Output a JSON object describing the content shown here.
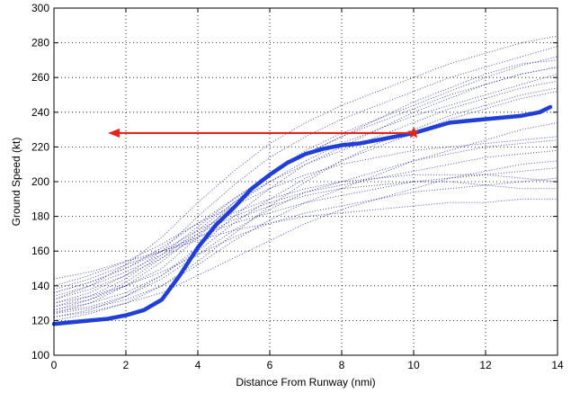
{
  "chart_data": {
    "type": "line",
    "title": "",
    "xlabel": "Distance From Runway (nmi)",
    "ylabel": "Ground Speed (kt)",
    "xlim": [
      0,
      14
    ],
    "ylim": [
      100,
      300
    ],
    "xticks": [
      0,
      2,
      4,
      6,
      8,
      10,
      12,
      14
    ],
    "yticks": [
      100,
      120,
      140,
      160,
      180,
      200,
      220,
      240,
      260,
      280,
      300
    ],
    "grid": true,
    "legend": "none",
    "colors": {
      "background_tracks": "#1a1aa8",
      "highlight_track": "#1f3fd6",
      "arrow": "#e3261b",
      "grid": "#000000"
    },
    "background_tracks": [
      {
        "x": [
          0,
          1,
          2,
          3,
          4,
          5,
          6,
          7,
          8,
          9,
          10,
          11,
          12,
          13,
          14
        ],
        "y": [
          128,
          132,
          140,
          150,
          168,
          188,
          205,
          218,
          228,
          236,
          244,
          252,
          260,
          267,
          272
        ]
      },
      {
        "x": [
          0,
          1,
          2,
          3,
          4,
          5,
          6,
          7,
          8,
          9,
          10,
          11,
          12,
          13,
          14
        ],
        "y": [
          130,
          136,
          146,
          160,
          180,
          198,
          214,
          226,
          236,
          244,
          252,
          260,
          266,
          272,
          278
        ]
      },
      {
        "x": [
          0,
          1,
          2,
          3,
          4,
          5,
          6,
          7,
          8,
          9,
          10,
          11,
          12,
          13,
          14
        ],
        "y": [
          126,
          130,
          136,
          146,
          160,
          176,
          190,
          202,
          212,
          220,
          228,
          236,
          242,
          248,
          252
        ]
      },
      {
        "x": [
          0,
          1,
          2,
          3,
          4,
          5,
          6,
          7,
          8,
          9,
          10,
          11,
          12,
          13,
          14
        ],
        "y": [
          124,
          127,
          132,
          140,
          152,
          166,
          178,
          188,
          196,
          204,
          212,
          218,
          224,
          230,
          234
        ]
      },
      {
        "x": [
          0,
          1,
          2,
          3,
          4,
          5,
          6,
          7,
          8,
          9,
          10,
          11,
          12,
          13,
          14
        ],
        "y": [
          132,
          140,
          152,
          168,
          188,
          206,
          222,
          234,
          244,
          252,
          260,
          268,
          274,
          280,
          284
        ]
      },
      {
        "x": [
          0,
          1,
          2,
          3,
          4,
          5,
          6,
          7,
          8,
          9,
          10,
          11,
          12,
          13,
          14
        ],
        "y": [
          122,
          125,
          130,
          136,
          146,
          156,
          166,
          176,
          184,
          190,
          196,
          202,
          206,
          210,
          212
        ]
      },
      {
        "x": [
          0,
          1,
          2,
          3,
          4,
          5,
          6,
          7,
          8,
          9,
          10,
          11,
          12,
          13,
          14
        ],
        "y": [
          136,
          142,
          150,
          162,
          176,
          190,
          204,
          216,
          226,
          234,
          242,
          250,
          256,
          262,
          266
        ]
      },
      {
        "x": [
          0,
          1,
          2,
          3,
          4,
          5,
          6,
          7,
          8,
          9,
          10,
          11,
          12,
          13,
          14
        ],
        "y": [
          125,
          128,
          134,
          144,
          158,
          172,
          184,
          194,
          200,
          206,
          212,
          216,
          220,
          222,
          224
        ]
      },
      {
        "x": [
          0,
          1,
          2,
          3,
          4,
          5,
          6,
          7,
          8,
          9,
          10,
          11,
          12,
          13,
          14
        ],
        "y": [
          140,
          146,
          154,
          164,
          176,
          186,
          196,
          204,
          210,
          214,
          218,
          220,
          222,
          224,
          226
        ]
      },
      {
        "x": [
          0,
          1,
          2,
          3,
          4,
          5,
          6,
          7,
          8,
          9,
          10,
          11,
          12,
          13,
          14
        ],
        "y": [
          128,
          134,
          144,
          158,
          174,
          190,
          204,
          216,
          226,
          236,
          246,
          254,
          262,
          268,
          270
        ]
      },
      {
        "x": [
          0,
          1,
          2,
          3,
          4,
          5,
          6,
          7,
          8,
          9,
          10,
          11,
          12,
          13,
          14
        ],
        "y": [
          134,
          140,
          148,
          158,
          170,
          180,
          188,
          194,
          198,
          202,
          206,
          210,
          214,
          216,
          218
        ]
      },
      {
        "x": [
          0,
          1,
          2,
          3,
          4,
          5,
          6,
          7,
          8,
          9,
          10,
          11,
          12,
          13,
          14
        ],
        "y": [
          120,
          124,
          130,
          140,
          154,
          170,
          186,
          200,
          212,
          222,
          230,
          238,
          244,
          250,
          254
        ]
      },
      {
        "x": [
          0,
          1,
          2,
          3,
          4,
          5,
          6,
          7,
          8,
          9,
          10,
          11,
          12,
          13,
          14
        ],
        "y": [
          138,
          144,
          152,
          160,
          168,
          176,
          182,
          188,
          192,
          196,
          200,
          202,
          204,
          206,
          208
        ]
      },
      {
        "x": [
          0,
          1,
          2,
          3,
          4,
          5,
          6,
          7,
          8,
          9,
          10,
          11,
          12,
          13,
          14
        ],
        "y": [
          126,
          132,
          142,
          156,
          172,
          188,
          200,
          210,
          218,
          226,
          234,
          242,
          248,
          254,
          258
        ]
      },
      {
        "x": [
          0,
          1,
          2,
          3,
          4,
          5,
          6,
          7,
          8,
          9,
          10,
          11,
          12,
          13,
          14
        ],
        "y": [
          130,
          134,
          140,
          148,
          158,
          168,
          176,
          182,
          186,
          190,
          194,
          196,
          198,
          200,
          202
        ]
      },
      {
        "x": [
          0,
          1,
          2,
          3,
          4,
          5,
          6,
          7,
          8,
          9,
          10,
          11,
          12,
          13,
          14
        ],
        "y": [
          144,
          148,
          154,
          160,
          166,
          172,
          176,
          180,
          182,
          184,
          186,
          188,
          188,
          190,
          190
        ]
      },
      {
        "x": [
          0,
          1,
          2,
          3,
          4,
          5,
          6,
          7,
          8,
          9,
          10,
          11,
          12,
          13,
          14
        ],
        "y": [
          124,
          130,
          140,
          154,
          170,
          186,
          200,
          212,
          222,
          230,
          238,
          244,
          250,
          256,
          262
        ]
      },
      {
        "x": [
          0,
          1,
          2,
          3,
          4,
          5,
          6,
          7,
          8,
          9,
          10,
          11,
          12,
          13,
          14
        ],
        "y": [
          132,
          138,
          146,
          156,
          168,
          178,
          186,
          192,
          196,
          198,
          200,
          200,
          198,
          196,
          196
        ]
      },
      {
        "x": [
          0,
          1,
          2,
          3,
          4,
          5,
          6,
          7,
          8,
          9,
          10,
          11,
          12,
          13,
          14
        ],
        "y": [
          122,
          126,
          134,
          146,
          162,
          180,
          196,
          210,
          220,
          230,
          240,
          248,
          256,
          262,
          266
        ]
      },
      {
        "x": [
          0,
          1,
          2,
          3,
          4,
          5,
          6,
          7,
          8,
          9,
          10,
          11,
          12,
          13,
          14
        ],
        "y": [
          136,
          142,
          150,
          160,
          172,
          182,
          190,
          196,
          200,
          202,
          204,
          204,
          204,
          202,
          200
        ]
      }
    ],
    "series": [
      {
        "x": [
          0,
          0.5,
          1,
          1.5,
          2,
          2.5,
          3,
          3.5,
          4,
          4.5,
          5,
          5.5,
          6,
          6.5,
          7,
          7.5,
          8,
          8.5,
          9,
          9.5,
          10,
          10.5,
          11,
          11.5,
          12,
          12.5,
          13,
          13.5,
          13.8
        ],
        "y": [
          118,
          119,
          120,
          121,
          123,
          126,
          132,
          146,
          162,
          175,
          185,
          196,
          204,
          211,
          216,
          219,
          221,
          222,
          224,
          226,
          228,
          231,
          234,
          235,
          236,
          237,
          238,
          240,
          243
        ]
      }
    ],
    "annotations": [
      {
        "type": "arrow",
        "from": [
          10,
          228
        ],
        "to": [
          1.5,
          228
        ],
        "color": "#e3261b"
      }
    ]
  }
}
